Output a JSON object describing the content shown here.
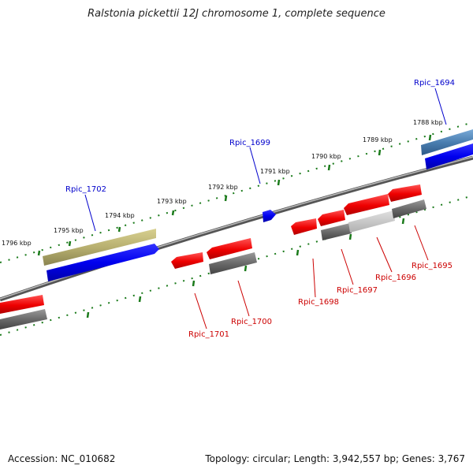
{
  "title": "Ralstonia pickettii 12J chromosome 1, complete sequence",
  "footer": {
    "accession": "Accession: NC_010682",
    "topology": "Topology: circular; Length: 3,942,557 bp; Genes: 3,767"
  },
  "kbp_labels": [
    "1796 kbp",
    "1795 kbp",
    "1794 kbp",
    "1793 kbp",
    "1792 kbp",
    "1791 kbp",
    "1790 kbp",
    "1789 kbp",
    "1788 kbp"
  ],
  "genes_forward": [
    "Rpic_1702",
    "Rpic_1699",
    "Rpic_1694"
  ],
  "genes_reverse": [
    "Rpic_1701",
    "Rpic_1700",
    "Rpic_1698",
    "Rpic_1697",
    "Rpic_1696",
    "Rpic_1695"
  ],
  "colors": {
    "forward_label": "#0000cc",
    "reverse_label": "#cc0000",
    "tick": "#1a7a1a",
    "forward_gene": "#0000ee",
    "reverse_gene": "#ee0000",
    "cds_gray": "#666666",
    "olive": "#b8b070",
    "steel": "#4a7eb0"
  }
}
